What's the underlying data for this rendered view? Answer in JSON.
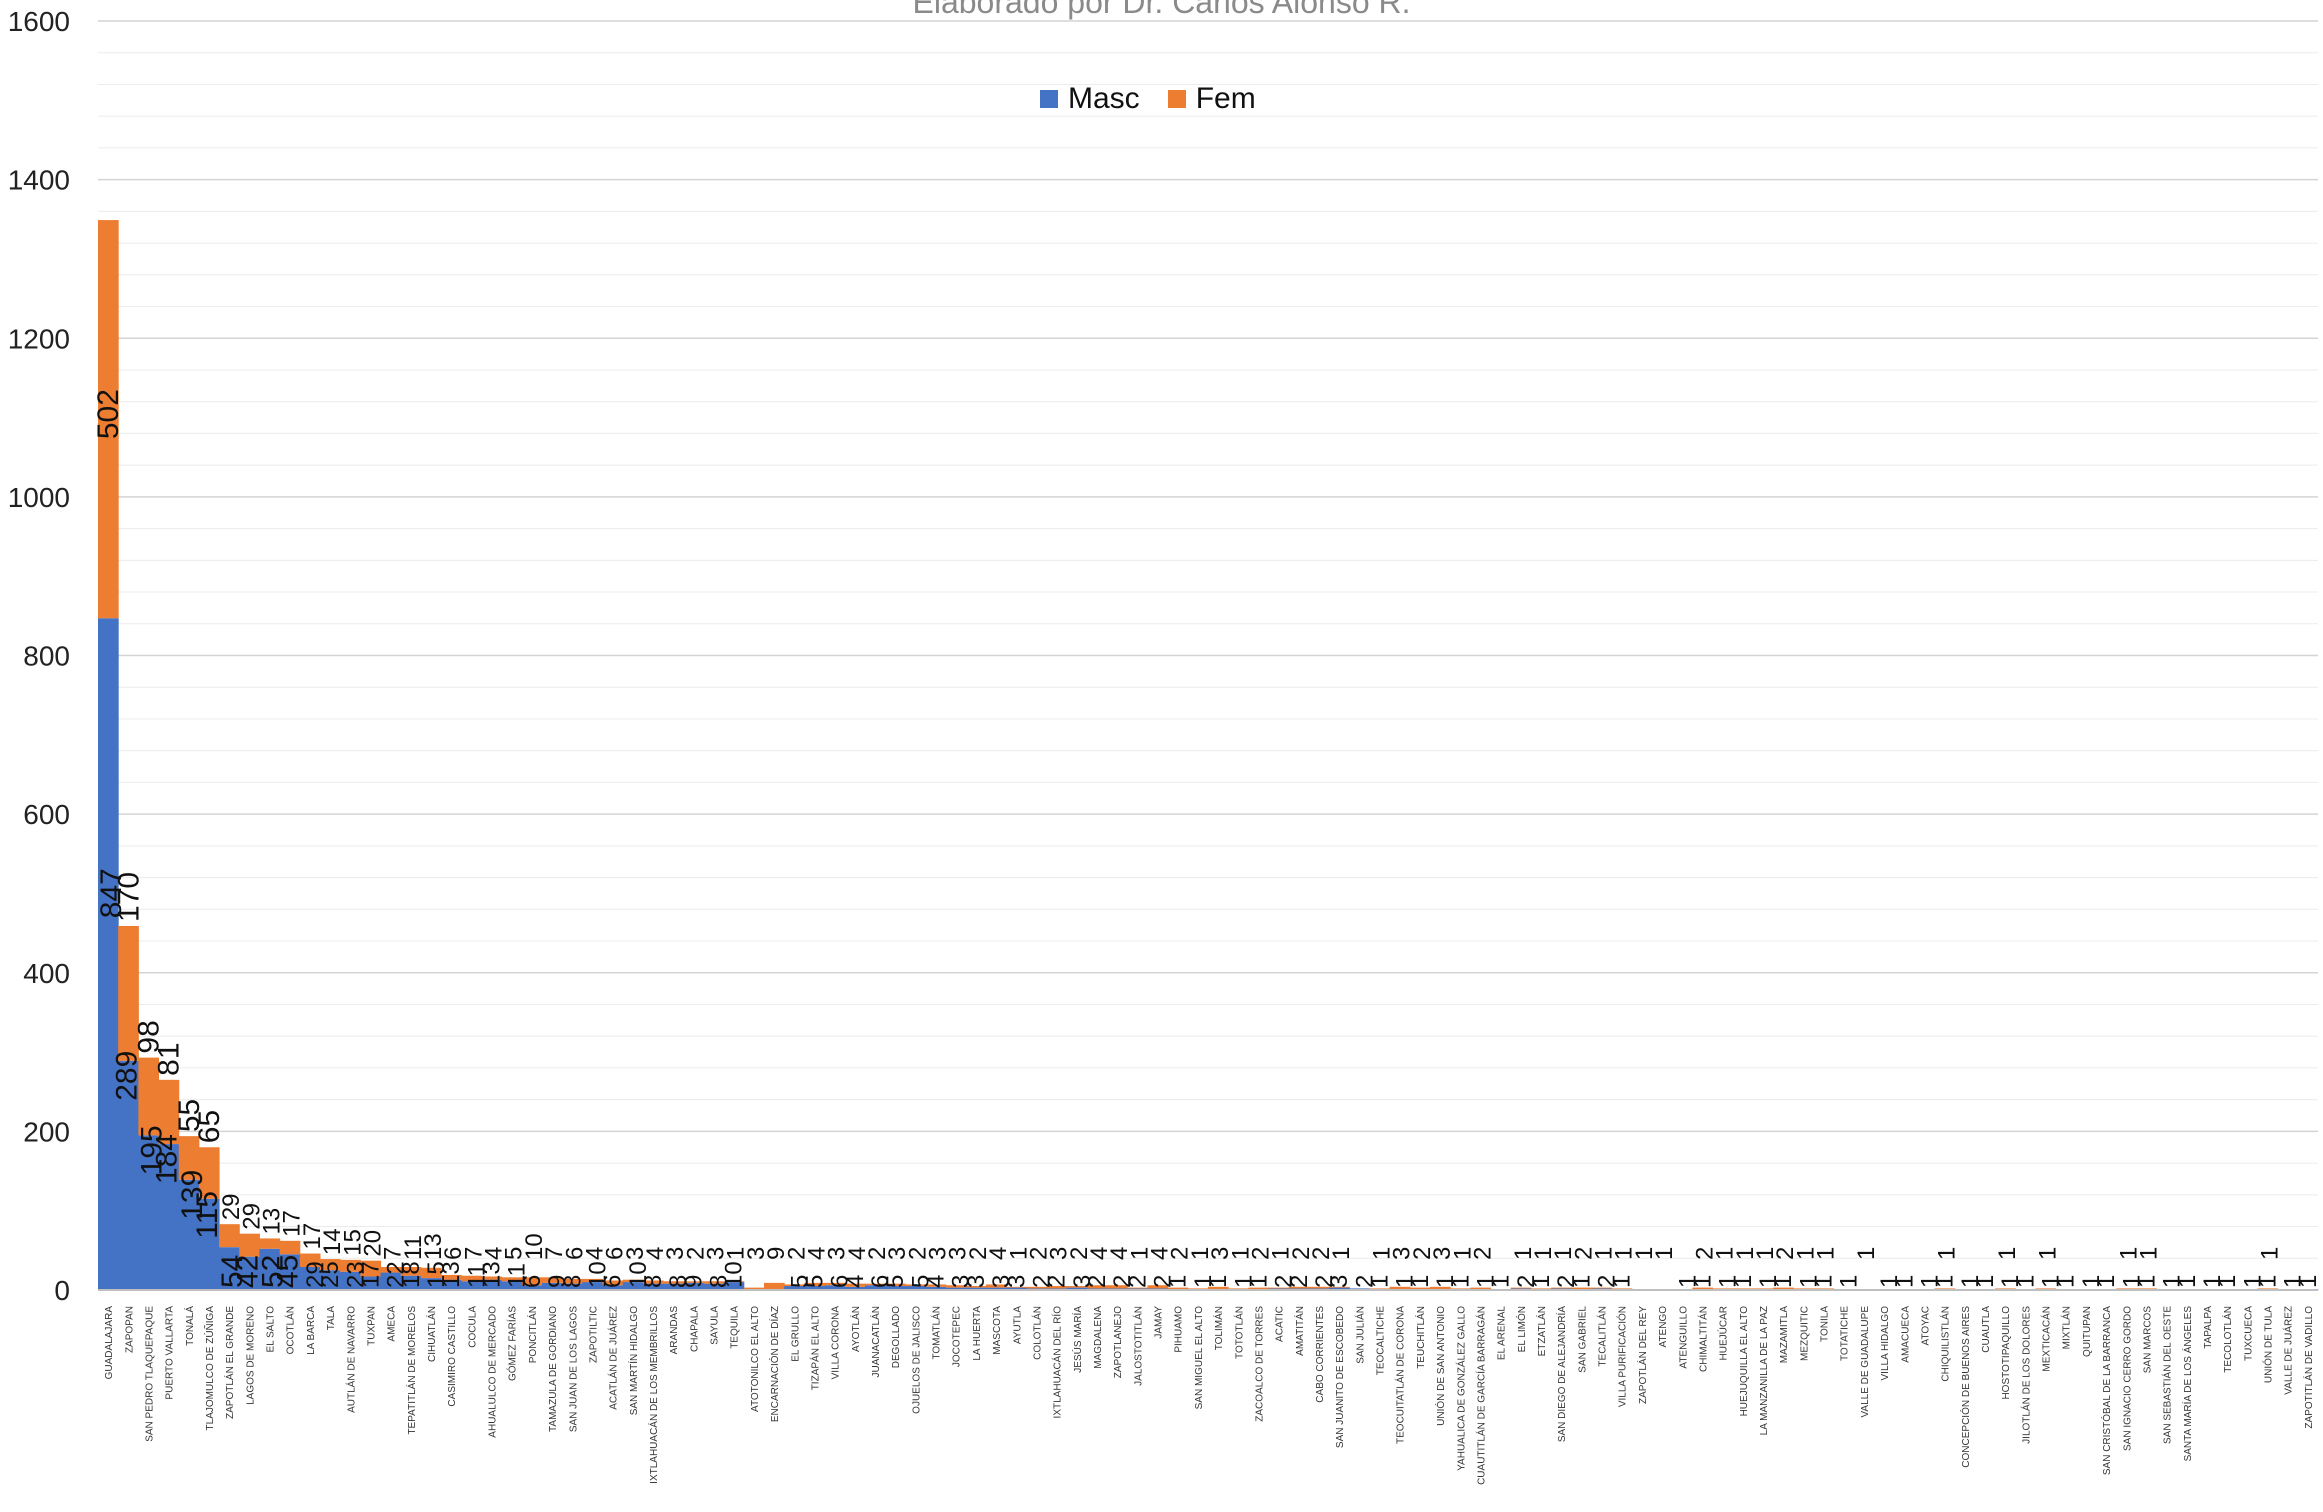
{
  "chart_data": {
    "type": "bar",
    "stacked": true,
    "title": "Elaborado por Dr. Carlos Alonso R.",
    "xlabel": "",
    "ylabel": "",
    "ylim": [
      0,
      1600
    ],
    "yticks": [
      0,
      200,
      400,
      600,
      800,
      1000,
      1200,
      1400,
      1600
    ],
    "grid": true,
    "legend_position": "top-center",
    "colors": {
      "Masc": "#4472c4",
      "Fem": "#ed7d31"
    },
    "categories": [
      "GUADALAJARA",
      "ZAPOPAN",
      "SAN PEDRO TLAQUEPAQUE",
      "PUERTO VALLARTA",
      "TONALÁ",
      "TLAJOMULCO DE ZÚÑIGA",
      "ZAPOTLÁN EL GRANDE",
      "LAGOS DE MORENO",
      "EL SALTO",
      "OCOTLÁN",
      "LA BARCA",
      "TALA",
      "AUTLÁN DE NAVARRO",
      "TUXPAN",
      "AMECA",
      "TEPATITLÁN DE MORELOS",
      "CIHUATLÁN",
      "CASIMIRO CASTILLO",
      "COCULA",
      "AHUALULCO DE MERCADO",
      "GÓMEZ FARÍAS",
      "PONCITLÁN",
      "TAMAZULA DE GORDIANO",
      "SAN JUAN DE LOS LAGOS",
      "ZAPOTILTIC",
      "ACATLÁN DE JUÁREZ",
      "SAN MARTÍN HIDALGO",
      "IXTLAHUACÁN DE LOS MEMBRILLOS",
      "ARANDAS",
      "CHAPALA",
      "SAYULA",
      "TEQUILA",
      "ATOTONILCO EL ALTO",
      "ENCARNACIÓN DE DÍAZ",
      "EL GRULLO",
      "TIZAPÁN EL ALTO",
      "VILLA CORONA",
      "AYOTLÁN",
      "JUANACATLÁN",
      "DEGOLLADO",
      "OJUELOS DE JALISCO",
      "TOMATLÁN",
      "JOCOTEPEC",
      "LA HUERTA",
      "MASCOTA",
      "AYUTLA",
      "COLOTLÁN",
      "IXTLAHUACÁN DEL RÍO",
      "JESÚS MARÍA",
      "MAGDALENA",
      "ZAPOTLANEJO",
      "JALOSTOTITLÁN",
      "JAMAY",
      "PIHUAMO",
      "SAN MIGUEL EL ALTO",
      "TOLIMÁN",
      "TOTOTLÁN",
      "ZACOALCO DE TORRES",
      "ACATIC",
      "AMATITÁN",
      "CABO CORRIENTES",
      "SAN JUANITO DE ESCOBEDO",
      "SAN JULIÁN",
      "TEOCALTICHE",
      "TEOCUITATLÁN DE CORONA",
      "TEUCHITLÁN",
      "UNIÓN DE SAN ANTONIO",
      "YAHUALICA DE GONZÁLEZ GALLO",
      "CUAUTITLÁN DE GARCÍA BARRAGÁN",
      "EL ARENAL",
      "EL LIMÓN",
      "ETZATLÁN",
      "SAN DIEGO DE ALEJANDRÍA",
      "SAN GABRIEL",
      "TECALITLÁN",
      "VILLA PURIFICACIÓN",
      "ZAPOTLÁN DEL REY",
      "ATENGO",
      "ATENGUILLO",
      "CHIMALTITÁN",
      "HUEJÚCAR",
      "HUEJUQUILLA EL ALTO",
      "LA MANZANILLA DE LA PAZ",
      "MAZAMITLA",
      "MEZQUITIC",
      "TONILA",
      "TOTATICHE",
      "VALLE DE GUADALUPE",
      "VILLA HIDALGO",
      "AMACUECA",
      "ATOYAC",
      "CHIQUILISTLÁN",
      "CONCEPCIÓN DE BUENOS AIRES",
      "CUAUTLA",
      "HOSTOTIPAQUILLO",
      "JILOTLÁN DE LOS DOLORES",
      "MEXTICACÁN",
      "MIXTLÁN",
      "QUITUPAN",
      "SAN CRISTÓBAL DE LA BARRANCA",
      "SAN IGNACIO CERRO GORDO",
      "SAN MARCOS",
      "SAN SEBASTIÁN DEL OESTE",
      "SANTA MARÍA DE LOS ÁNGELES",
      "TAPALPA",
      "TECOLOTLÁN",
      "TUXCUECA",
      "UNIÓN DE TULA",
      "VALLE DE JUÁREZ",
      "ZAPOTITLÁN DE VADILLO"
    ],
    "series": [
      {
        "name": "Masc",
        "values": [
          847,
          289,
          195,
          184,
          139,
          115,
          54,
          42,
          52,
          45,
          29,
          25,
          23,
          17,
          22,
          18,
          15,
          13,
          11,
          13,
          11,
          6,
          9,
          8,
          10,
          6,
          10,
          8,
          8,
          9,
          8,
          10,
          0,
          0,
          5,
          5,
          6,
          4,
          6,
          5,
          5,
          4,
          3,
          3,
          3,
          3,
          2,
          2,
          3,
          2,
          2,
          2,
          2,
          1,
          1,
          1,
          1,
          1,
          2,
          2,
          2,
          3,
          2,
          1,
          1,
          1,
          1,
          1,
          1,
          1,
          2,
          1,
          2,
          1,
          2,
          1,
          0,
          0,
          1,
          1,
          1,
          1,
          1,
          1,
          1,
          1,
          1,
          0,
          1,
          1,
          1,
          1,
          1,
          1,
          1,
          1,
          1,
          1,
          1,
          1,
          1,
          1,
          1,
          1,
          1,
          1,
          1,
          1,
          1,
          1
        ]
      },
      {
        "name": "Fem",
        "values": [
          502,
          170,
          98,
          81,
          55,
          65,
          29,
          29,
          13,
          17,
          17,
          14,
          15,
          20,
          7,
          11,
          13,
          6,
          7,
          4,
          5,
          10,
          7,
          6,
          4,
          6,
          3,
          4,
          3,
          2,
          3,
          1,
          3,
          9,
          2,
          4,
          3,
          4,
          2,
          3,
          2,
          3,
          3,
          2,
          4,
          1,
          2,
          3,
          2,
          4,
          4,
          1,
          4,
          2,
          1,
          3,
          1,
          2,
          1,
          2,
          2,
          1,
          0,
          1,
          3,
          2,
          3,
          1,
          2,
          0,
          1,
          1,
          1,
          2,
          1,
          1,
          1,
          1,
          0,
          2,
          1,
          1,
          1,
          2,
          1,
          1,
          0,
          1,
          0,
          0,
          0,
          1,
          0,
          0,
          1,
          0,
          1,
          0,
          0,
          0,
          1,
          1,
          0,
          0,
          0,
          0,
          0,
          1,
          0,
          0
        ]
      }
    ]
  }
}
